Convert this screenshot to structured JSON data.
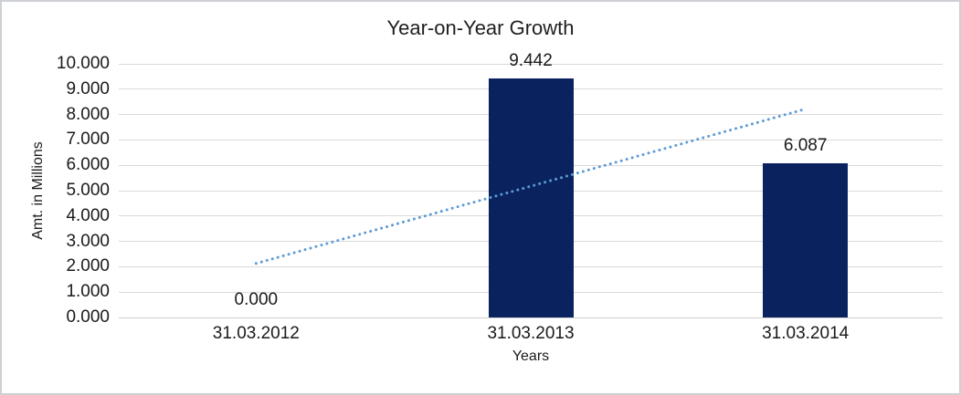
{
  "chart_data": {
    "type": "bar",
    "title": "Year-on-Year Growth",
    "xlabel": "Years",
    "ylabel": "Amt. in Millions",
    "categories": [
      "31.03.2012",
      "31.03.2013",
      "31.03.2014"
    ],
    "values": [
      0,
      9.442,
      6.087
    ],
    "value_labels": [
      "0.000",
      "9.442",
      "6.087"
    ],
    "ylim": [
      0,
      10
    ],
    "yticks": [
      0,
      1,
      2,
      3,
      4,
      5,
      6,
      7,
      8,
      9,
      10
    ],
    "ytick_labels": [
      "0.000",
      "1.000",
      "2.000",
      "3.000",
      "4.000",
      "5.000",
      "6.000",
      "7.000",
      "8.000",
      "9.000",
      "10.000"
    ],
    "grid": true,
    "legend": "none",
    "trendline": {
      "kind": "linear",
      "style": "dotted",
      "start_value": 2.13,
      "end_value": 8.22
    },
    "colors": {
      "bar": "#0a235f",
      "trendline": "#5b9bd5",
      "gridline": "#d9d9d9",
      "axis_line": "#d0d0d0",
      "text": "#1a1a1a",
      "border": "#cdd0d4"
    }
  }
}
